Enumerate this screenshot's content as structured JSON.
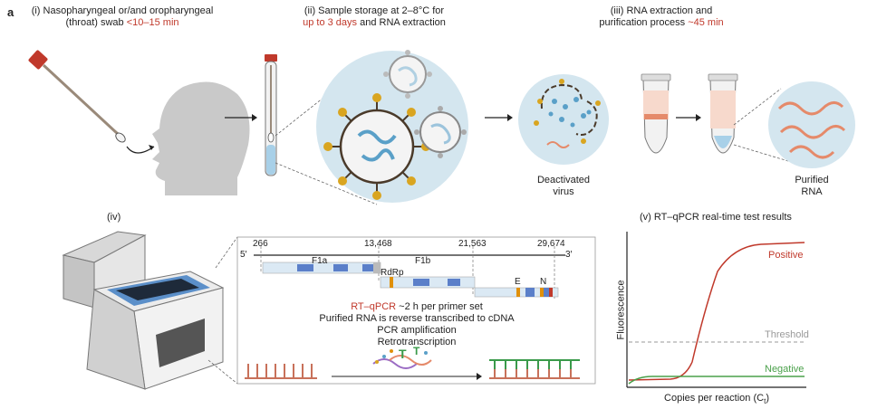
{
  "panel_letter": "a",
  "steps": {
    "s1": {
      "line1": "(i) Nasopharyngeal or/and oropharyngeal",
      "line2": "(throat) swab ",
      "time": "<10–15 min"
    },
    "s2": {
      "line1": "(ii) Sample storage at 2–8°C for",
      "time": "up to 3 days",
      "line2": " and RNA extraction"
    },
    "s3": {
      "line1": "(iii) RNA extraction and",
      "line2": "purification process ",
      "time": "~45 min"
    },
    "s4": {
      "label": "(iv)"
    },
    "s5": {
      "label": "(v) RT–qPCR real-time test results"
    }
  },
  "captions": {
    "deactivated_1": "Deactivated",
    "deactivated_2": "virus",
    "purified_1": "Purified",
    "purified_2": "RNA"
  },
  "genome": {
    "five_prime": "5′",
    "three_prime": "3′",
    "positions": [
      "266",
      "13,468",
      "21,563",
      "29,674"
    ],
    "genes": {
      "f1a": "F1a",
      "f1b": "F1b",
      "rdrp": "RdRp",
      "e": "E",
      "n": "N"
    }
  },
  "process": {
    "rtqpcr": "RT–qPCR",
    "rtqpcr_rest": " ~2 h per primer set",
    "line2": "Purified RNA is reverse transcribed to cDNA",
    "line3": "PCR amplification",
    "line4": "Retrotranscription"
  },
  "chart_data": {
    "type": "line",
    "ylabel": "Fluorescence",
    "xlabel": "Copies per reaction (C",
    "xlabel_sub": "t",
    "xlabel_end": ")",
    "series": [
      {
        "name": "Positive",
        "color": "#c0392b"
      },
      {
        "name": "Negative",
        "color": "#4aa04a"
      }
    ],
    "threshold_label": "Threshold",
    "threshold_color": "#999999"
  },
  "colors": {
    "accent_red": "#c0392b",
    "virus_blue": "#5aa0c8",
    "spike_yellow": "#d9a520",
    "negative_green": "#4aa04a"
  }
}
